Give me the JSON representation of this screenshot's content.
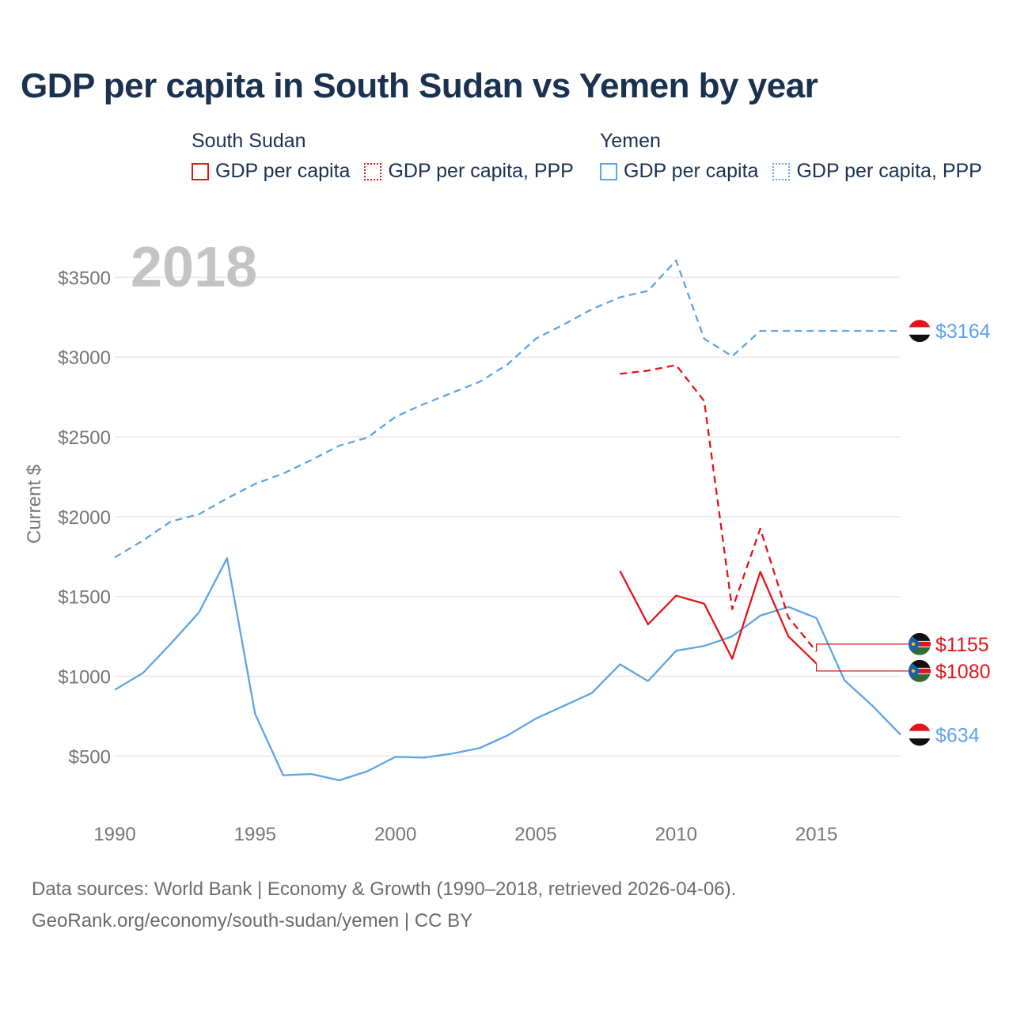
{
  "title": "GDP per capita in South Sudan vs Yemen by year",
  "legend": [
    {
      "group": "South Sudan",
      "items": [
        {
          "label": "GDP per capita",
          "color": "#e3141a",
          "style": "solid"
        },
        {
          "label": "GDP per capita, PPP",
          "color": "#e3141a",
          "style": "dotted"
        }
      ]
    },
    {
      "group": "Yemen",
      "items": [
        {
          "label": "GDP per capita",
          "color": "#5ea4e6",
          "style": "solid"
        },
        {
          "label": "GDP per capita, PPP",
          "color": "#5ea4e6",
          "style": "dotted"
        }
      ]
    }
  ],
  "footer": {
    "line1": "Data sources: World Bank | Economy & Growth (1990–2018, retrieved 2026-04-06).",
    "line2": "GeoRank.org/economy/south-sudan/yemen | CC BY"
  },
  "chart_data": {
    "type": "line",
    "year_watermark": "2018",
    "ylabel": "Current $",
    "xlabel": "",
    "xlim": [
      1990,
      2018
    ],
    "ylim": [
      130,
      3720
    ],
    "x_ticks": [
      1990,
      1995,
      2000,
      2005,
      2010,
      2015
    ],
    "y_ticks": [
      500,
      1000,
      1500,
      2000,
      2500,
      3000,
      3500
    ],
    "y_tick_labels": [
      "$500",
      "$1000",
      "$1500",
      "$2000",
      "$2500",
      "$3000",
      "$3500"
    ],
    "grid": true,
    "series": [
      {
        "name": "Yemen GDP per capita, PPP",
        "country": "Yemen",
        "color": "#5ea4e6",
        "dash": "dashed",
        "x": [
          1990,
          1991,
          1992,
          1993,
          1994,
          1995,
          1996,
          1997,
          1998,
          1999,
          2000,
          2001,
          2002,
          2003,
          2004,
          2005,
          2006,
          2007,
          2008,
          2009,
          2010,
          2011,
          2012,
          2013,
          2014,
          2015,
          2016,
          2017,
          2018
        ],
        "y": [
          1745,
          1850,
          1970,
          2015,
          2115,
          2205,
          2270,
          2355,
          2445,
          2495,
          2625,
          2705,
          2775,
          2845,
          2955,
          3115,
          3205,
          3300,
          3375,
          3415,
          3605,
          3115,
          3005,
          3164,
          3164,
          3164,
          3164,
          3164,
          3164
        ],
        "end_label": "$3164"
      },
      {
        "name": "Yemen GDP per capita",
        "country": "Yemen",
        "color": "#5ea4e6",
        "dash": "solid",
        "x": [
          1990,
          1991,
          1992,
          1993,
          1994,
          1995,
          1996,
          1997,
          1998,
          1999,
          2000,
          2001,
          2002,
          2003,
          2004,
          2005,
          2006,
          2007,
          2008,
          2009,
          2010,
          2011,
          2012,
          2013,
          2014,
          2015,
          2016,
          2017,
          2018
        ],
        "y": [
          915,
          1020,
          1205,
          1400,
          1740,
          765,
          380,
          388,
          348,
          405,
          495,
          490,
          515,
          550,
          630,
          735,
          815,
          895,
          1075,
          970,
          1160,
          1190,
          1250,
          1380,
          1435,
          1365,
          975,
          815,
          634
        ],
        "end_label": "$634"
      },
      {
        "name": "South Sudan GDP per capita, PPP",
        "country": "South Sudan",
        "color": "#e3141a",
        "dash": "dashed",
        "x": [
          2008,
          2009,
          2010,
          2011,
          2012,
          2013,
          2014,
          2015
        ],
        "y": [
          2895,
          2915,
          2950,
          2725,
          1420,
          1925,
          1370,
          1155
        ],
        "end_label": "$1155"
      },
      {
        "name": "South Sudan GDP per capita",
        "country": "South Sudan",
        "color": "#e3141a",
        "dash": "solid",
        "x": [
          2008,
          2009,
          2010,
          2011,
          2012,
          2013,
          2014,
          2015
        ],
        "y": [
          1660,
          1325,
          1505,
          1455,
          1110,
          1655,
          1250,
          1080
        ],
        "end_label": "$1080"
      }
    ]
  }
}
